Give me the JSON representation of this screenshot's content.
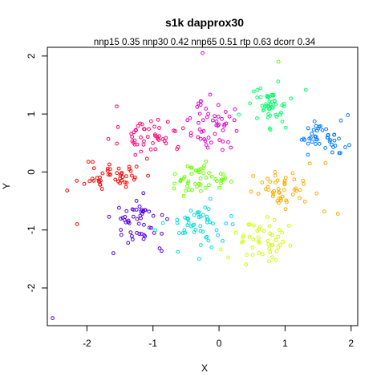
{
  "chart_data": {
    "type": "scatter",
    "title": "s1k dapprox30",
    "subtitle": "nnp15 0.35 nnp30 0.42 nnp65 0.51 rtp 0.63 dcorr 0.34",
    "xlabel": "X",
    "ylabel": "Y",
    "xlim": [
      -2.6,
      2.1
    ],
    "ylim": [
      -2.65,
      2.15
    ],
    "x_ticks": [
      -2,
      -1,
      0,
      1,
      2
    ],
    "y_ticks": [
      -2,
      -1,
      0,
      1,
      2
    ],
    "grid": false,
    "legend": "none",
    "clusters": [
      {
        "color": "#ff0000",
        "center": [
          -1.6,
          -0.05
        ],
        "spread": [
          0.22,
          0.14
        ],
        "n": 48,
        "seed": 11
      },
      {
        "color": "#ff0077",
        "center": [
          -1.0,
          0.6
        ],
        "spread": [
          0.25,
          0.12
        ],
        "n": 50,
        "seed": 23
      },
      {
        "color": "#dd00cc",
        "center": [
          -0.1,
          0.8
        ],
        "spread": [
          0.16,
          0.22
        ],
        "n": 50,
        "seed": 37
      },
      {
        "color": "#5500dd",
        "center": [
          -1.15,
          -0.85
        ],
        "spread": [
          0.22,
          0.2
        ],
        "n": 52,
        "seed": 41
      },
      {
        "color": "#00dddd",
        "center": [
          -0.3,
          -0.9
        ],
        "spread": [
          0.25,
          0.2
        ],
        "n": 52,
        "seed": 53
      },
      {
        "color": "#66ff00",
        "center": [
          -0.3,
          -0.15
        ],
        "spread": [
          0.22,
          0.13
        ],
        "n": 50,
        "seed": 67
      },
      {
        "color": "#ccff00",
        "center": [
          0.65,
          -1.15
        ],
        "spread": [
          0.2,
          0.18
        ],
        "n": 50,
        "seed": 79
      },
      {
        "color": "#ffaa00",
        "center": [
          1.0,
          -0.3
        ],
        "spread": [
          0.25,
          0.18
        ],
        "n": 50,
        "seed": 83
      },
      {
        "color": "#00ff66",
        "center": [
          0.7,
          1.15
        ],
        "spread": [
          0.2,
          0.2
        ],
        "n": 50,
        "seed": 97
      },
      {
        "color": "#0077ff",
        "center": [
          1.55,
          0.6
        ],
        "spread": [
          0.18,
          0.14
        ],
        "n": 45,
        "seed": 101
      }
    ],
    "points": [
      {
        "x": -2.52,
        "y": -2.52,
        "color": "#5500dd"
      },
      {
        "x": -0.25,
        "y": 2.05,
        "color": "#dd00cc"
      },
      {
        "x": 0.9,
        "y": 1.9,
        "color": "#66ff00"
      },
      {
        "x": -2.15,
        "y": -0.9,
        "color": "#ff0000"
      },
      {
        "x": -1.55,
        "y": 1.13,
        "color": "#ff0077"
      },
      {
        "x": 1.8,
        "y": -0.72,
        "color": "#ffaa00"
      },
      {
        "x": -2.3,
        "y": -0.32,
        "color": "#ff0000"
      },
      {
        "x": -1.6,
        "y": -1.4,
        "color": "#5500dd"
      },
      {
        "x": -0.3,
        "y": -1.5,
        "color": "#00dddd"
      },
      {
        "x": 1.95,
        "y": 0.98,
        "color": "#0077ff"
      }
    ]
  }
}
